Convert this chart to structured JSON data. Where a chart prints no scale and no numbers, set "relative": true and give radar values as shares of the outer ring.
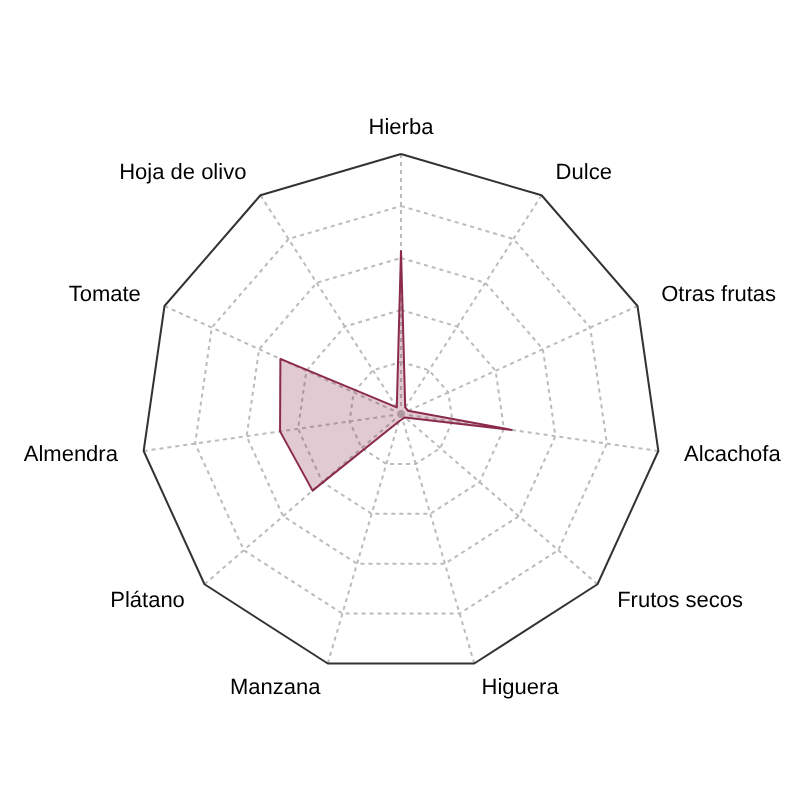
{
  "chart_data": {
    "type": "radar",
    "relative": true,
    "grid": true,
    "marker": "none",
    "categories": [
      "Hierba",
      "Dulce",
      "Otras frutas",
      "Alcachofa",
      "Frutos secos",
      "Higuera",
      "Manzana",
      "Plátano",
      "Almendra",
      "Tomate",
      "Hoja de olivo"
    ],
    "series": [
      {
        "color": "#8b2a4a",
        "values": [
          0.63,
          0.03,
          0.03,
          0.43,
          0.02,
          0.02,
          0.03,
          0.45,
          0.47,
          0.51,
          0.03
        ]
      }
    ]
  }
}
